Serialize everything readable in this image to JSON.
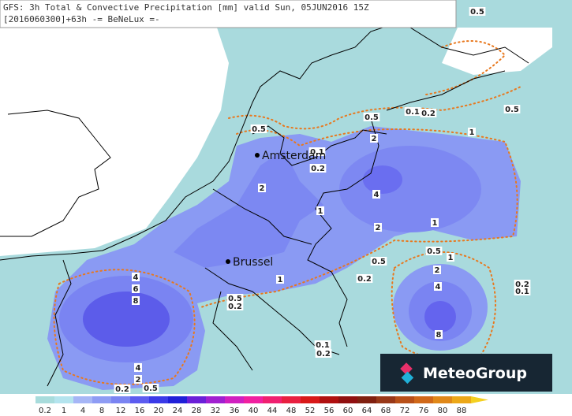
{
  "header": {
    "title": "GFS: 3h Total & Convective Precipitation [mm] valid Sun, 05JUN2016 15Z",
    "subtitle": "[2016060300]+63h -= BeNeLux =-"
  },
  "cities": [
    {
      "label": "Amsterdam"
    },
    {
      "label": "Brussel"
    }
  ],
  "contour_labels": [
    "0.5",
    "0.1",
    "0.2",
    "0.5",
    "0.5",
    "0.5",
    "1",
    "2",
    "0.1",
    "0.2",
    "2",
    "4",
    "1",
    "2",
    "1",
    "0.5",
    "1",
    "0.5",
    "2",
    "1",
    "0.2",
    "4",
    "4",
    "6",
    "8",
    "0.2",
    "0.1",
    "0.5",
    "0.2",
    "8",
    "0.1",
    "0.2",
    "4",
    "2",
    "0.2",
    "0.5"
  ],
  "colorbar": {
    "levels": [
      0.2,
      1,
      4,
      8,
      12,
      16,
      20,
      24,
      28,
      32,
      36,
      40,
      44,
      48,
      52,
      56,
      60,
      64,
      68,
      72,
      76,
      80,
      88
    ],
    "colors": [
      "#a8dcdc",
      "#b4e4ee",
      "#a6b6f6",
      "#8e9cf4",
      "#7a84f2",
      "#5c5cf0",
      "#3a3ae8",
      "#2020d8",
      "#6a20d8",
      "#a020d0",
      "#d020c0",
      "#f020a0",
      "#f02070",
      "#e82040",
      "#d81818",
      "#b01010",
      "#901010",
      "#802010",
      "#983818",
      "#b85018",
      "#d06818",
      "#e08818",
      "#eca818",
      "#f4d020"
    ]
  },
  "logo": {
    "text": "MeteoGroup"
  }
}
